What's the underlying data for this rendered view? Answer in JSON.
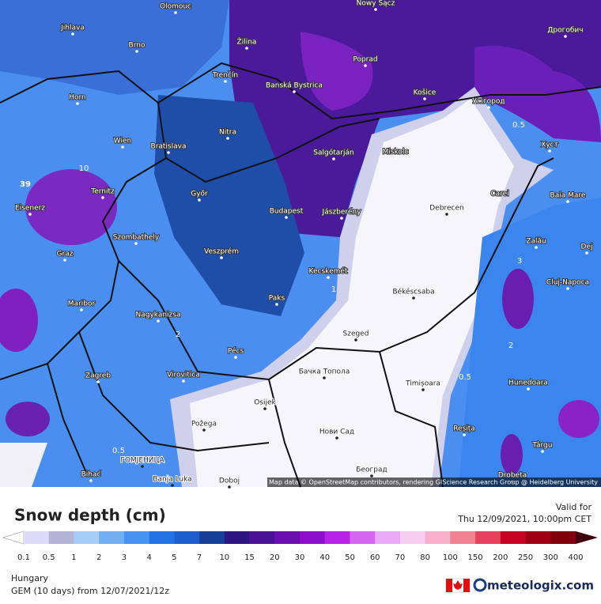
{
  "map": {
    "places": [
      "Olomouc",
      "Nowy Sącz",
      "Дрогобич",
      "Jihlava",
      "Brno",
      "Žilina",
      "Poprad",
      "Banská Bystrica",
      "Trenčín",
      "Košice",
      "Ужгород",
      "Horn",
      "Nitra",
      "Wien",
      "Bratislava",
      "Salgótarján",
      "Miskolc",
      "Хуст",
      "Ternitz",
      "Győr",
      "Carei",
      "Baia Mare",
      "Eisenerz",
      "Budapest",
      "Jászberény",
      "Debrecen",
      "Szombathely",
      "Zalău",
      "Graz",
      "Veszprém",
      "Dej",
      "Kecskemét",
      "Cluj-Napoca",
      "Maribor",
      "Paks",
      "Békéscsaba",
      "Nagykanizsa",
      "Szeged",
      "Pécs",
      "Zagreb",
      "Virovitica",
      "Бачка Топола",
      "Timișoara",
      "Hunedoara",
      "Osijek",
      "Požega",
      "Нови Сад",
      "Reșița",
      "Târgu",
      "ГОМЈЕНИЦА",
      "Bihać",
      "Banja Luka",
      "Doboj",
      "Београд",
      "Drobeta"
    ],
    "contour_labels": [
      "39",
      "0.5",
      "2",
      "1",
      "0.5",
      "10",
      "0.5",
      "3",
      "2"
    ],
    "attribution": "Map data © OpenStreetMap contributors, rendering GIScience Research Group @ Heidelberg University"
  },
  "legend": {
    "title": "Snow depth (cm)",
    "valid_label": "Valid for",
    "valid_time": "Thu 12/09/2021, 10:00pm CET",
    "ticks": [
      0.1,
      0.5,
      1,
      2,
      3,
      4,
      5,
      7,
      10,
      15,
      20,
      30,
      40,
      50,
      60,
      70,
      80,
      100,
      150,
      200,
      250,
      300,
      400
    ],
    "colors": [
      "#dcdcf8",
      "#b4b4d6",
      "#a6cdf7",
      "#73adf2",
      "#4793f2",
      "#2273e4",
      "#1c5fcc",
      "#163f98",
      "#2c1780",
      "#4a1294",
      "#6a0fae",
      "#8c10cc",
      "#b624e6",
      "#d466f2",
      "#eaaaf8",
      "#f8cdf2",
      "#f8b0cb",
      "#f08292",
      "#e6425e",
      "#c80424",
      "#a00014",
      "#80000e"
    ],
    "under_color": "#ffffff",
    "over_color": "#40000a"
  },
  "footer": {
    "region": "Hungary",
    "model": "GEM (10 days) from 12/07/2021/12z",
    "brand": "meteologix.com"
  }
}
